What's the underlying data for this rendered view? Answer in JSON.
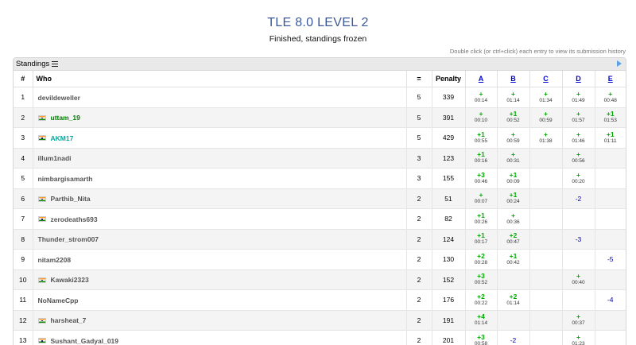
{
  "contest": {
    "title": "TLE 8.0 LEVEL 2",
    "status": "Finished, standings frozen",
    "hint": "Double click (or ctrl+click) each entry to view its submission history"
  },
  "panel": {
    "label": "Standings"
  },
  "columns": {
    "rank": "#",
    "who": "Who",
    "solved": "=",
    "penalty": "Penalty",
    "problems": [
      "A",
      "B",
      "C",
      "D",
      "E"
    ]
  },
  "rows": [
    {
      "rank": "1",
      "who": "devildeweller",
      "flag": false,
      "color": "",
      "solved": "5",
      "penalty": "339",
      "cells": [
        [
          "+",
          "00:14"
        ],
        [
          "+",
          "01:14"
        ],
        [
          "+",
          "01:34"
        ],
        [
          "+",
          "01:49"
        ],
        [
          "+",
          "00:48"
        ]
      ]
    },
    {
      "rank": "2",
      "who": "uttam_19",
      "flag": true,
      "color": "green",
      "solved": "5",
      "penalty": "391",
      "cells": [
        [
          "+",
          "00:10"
        ],
        [
          "+1",
          "00:52"
        ],
        [
          "+",
          "00:59"
        ],
        [
          "+",
          "01:57"
        ],
        [
          "+1",
          "01:53"
        ]
      ]
    },
    {
      "rank": "3",
      "who": "AKM17",
      "flag": true,
      "color": "cyan",
      "solved": "5",
      "penalty": "429",
      "cells": [
        [
          "+1",
          "00:55"
        ],
        [
          "+",
          "00:59"
        ],
        [
          "+",
          "01:38"
        ],
        [
          "+",
          "01:46"
        ],
        [
          "+1",
          "01:11"
        ]
      ]
    },
    {
      "rank": "4",
      "who": "illum1nadi",
      "flag": false,
      "color": "",
      "solved": "3",
      "penalty": "123",
      "cells": [
        [
          "+1",
          "00:16"
        ],
        [
          "+",
          "00:31"
        ],
        null,
        [
          "+",
          "00:56"
        ],
        null
      ]
    },
    {
      "rank": "5",
      "who": "nimbargisamarth",
      "flag": false,
      "color": "",
      "solved": "3",
      "penalty": "155",
      "cells": [
        [
          "+3",
          "00:46"
        ],
        [
          "+1",
          "00:09"
        ],
        null,
        [
          "+",
          "00:20"
        ],
        null
      ]
    },
    {
      "rank": "6",
      "who": "Parthib_Nita",
      "flag": true,
      "color": "",
      "solved": "2",
      "penalty": "51",
      "cells": [
        [
          "+",
          "00:07"
        ],
        [
          "+1",
          "00:24"
        ],
        null,
        [
          "-2",
          ""
        ],
        null
      ]
    },
    {
      "rank": "7",
      "who": "zerodeaths693",
      "flag": true,
      "color": "",
      "solved": "2",
      "penalty": "82",
      "cells": [
        [
          "+1",
          "00:26"
        ],
        [
          "+",
          "00:36"
        ],
        null,
        null,
        null
      ]
    },
    {
      "rank": "8",
      "who": "Thunder_strom007",
      "flag": false,
      "color": "",
      "solved": "2",
      "penalty": "124",
      "cells": [
        [
          "+1",
          "00:17"
        ],
        [
          "+2",
          "00:47"
        ],
        null,
        [
          "-3",
          ""
        ],
        null
      ]
    },
    {
      "rank": "9",
      "who": "nitam2208",
      "flag": false,
      "color": "",
      "solved": "2",
      "penalty": "130",
      "cells": [
        [
          "+2",
          "00:28"
        ],
        [
          "+1",
          "00:42"
        ],
        null,
        null,
        [
          "-5",
          ""
        ]
      ]
    },
    {
      "rank": "10",
      "who": "Kawaki2323",
      "flag": true,
      "color": "",
      "solved": "2",
      "penalty": "152",
      "cells": [
        [
          "+3",
          "00:52"
        ],
        null,
        null,
        [
          "+",
          "00:40"
        ],
        null
      ]
    },
    {
      "rank": "11",
      "who": "NoNameCpp",
      "flag": false,
      "color": "",
      "solved": "2",
      "penalty": "176",
      "cells": [
        [
          "+2",
          "00:22"
        ],
        [
          "+2",
          "01:14"
        ],
        null,
        null,
        [
          "-4",
          ""
        ]
      ]
    },
    {
      "rank": "12",
      "who": "harsheat_7",
      "flag": true,
      "color": "",
      "solved": "2",
      "penalty": "191",
      "cells": [
        [
          "+4",
          "01:14"
        ],
        null,
        null,
        [
          "+",
          "00:37"
        ],
        null
      ]
    },
    {
      "rank": "13",
      "who": "Sushant_Gadyal_019",
      "flag": true,
      "color": "",
      "solved": "2",
      "penalty": "201",
      "cells": [
        [
          "+3",
          "00:58"
        ],
        [
          "-2",
          ""
        ],
        null,
        [
          "+",
          "01:23"
        ],
        null
      ]
    }
  ]
}
